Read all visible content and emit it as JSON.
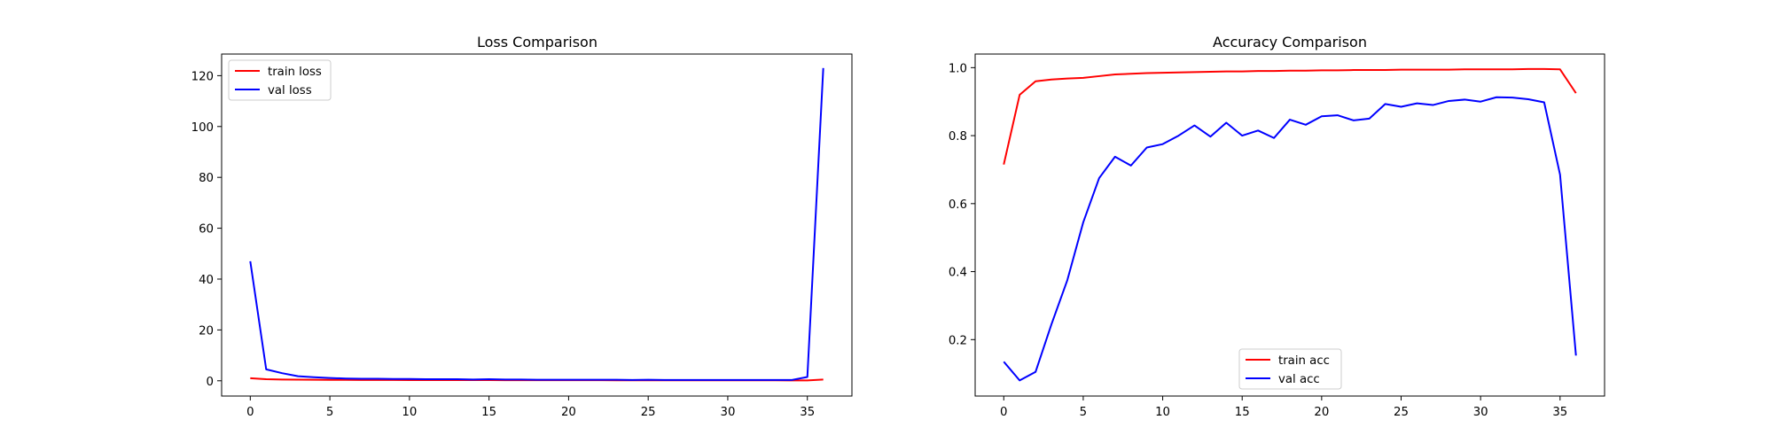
{
  "chart_data": [
    {
      "type": "line",
      "title": "Loss Comparison",
      "xlabel": "",
      "ylabel": "",
      "xlim": [
        -1.8,
        37.8
      ],
      "ylim": [
        -6.0,
        128.5
      ],
      "xticks": [
        0,
        5,
        10,
        15,
        20,
        25,
        30,
        35
      ],
      "yticks": [
        0,
        20,
        40,
        60,
        80,
        100,
        120
      ],
      "grid": false,
      "legend_position": "top-left",
      "x": [
        0,
        1,
        2,
        3,
        4,
        5,
        6,
        7,
        8,
        9,
        10,
        11,
        12,
        13,
        14,
        15,
        16,
        17,
        18,
        19,
        20,
        21,
        22,
        23,
        24,
        25,
        26,
        27,
        28,
        29,
        30,
        31,
        32,
        33,
        34,
        35,
        36
      ],
      "series": [
        {
          "name": "train loss",
          "color": "#ff0000",
          "values": [
            1.0,
            0.6,
            0.5,
            0.45,
            0.4,
            0.38,
            0.35,
            0.33,
            0.32,
            0.3,
            0.29,
            0.28,
            0.27,
            0.26,
            0.25,
            0.25,
            0.24,
            0.24,
            0.23,
            0.22,
            0.22,
            0.21,
            0.21,
            0.2,
            0.2,
            0.2,
            0.19,
            0.19,
            0.18,
            0.18,
            0.18,
            0.17,
            0.17,
            0.17,
            0.16,
            0.16,
            0.5
          ]
        },
        {
          "name": "val loss",
          "color": "#0000ff",
          "values": [
            47.0,
            4.5,
            3.0,
            1.8,
            1.4,
            1.1,
            0.9,
            0.8,
            0.8,
            0.7,
            0.7,
            0.6,
            0.6,
            0.6,
            0.5,
            0.6,
            0.5,
            0.5,
            0.4,
            0.4,
            0.4,
            0.4,
            0.4,
            0.4,
            0.3,
            0.4,
            0.3,
            0.3,
            0.3,
            0.3,
            0.3,
            0.3,
            0.3,
            0.3,
            0.3,
            1.5,
            123.0
          ]
        }
      ]
    },
    {
      "type": "line",
      "title": "Accuracy Comparison",
      "xlabel": "",
      "ylabel": "",
      "xlim": [
        -1.8,
        37.8
      ],
      "ylim": [
        0.034,
        1.04
      ],
      "xticks": [
        0,
        5,
        10,
        15,
        20,
        25,
        30,
        35
      ],
      "yticks": [
        0.2,
        0.4,
        0.6,
        0.8,
        1.0
      ],
      "ytick_labels": [
        "0.2",
        "0.4",
        "0.6",
        "0.8",
        "1.0"
      ],
      "grid": false,
      "legend_position": "bottom-center",
      "x": [
        0,
        1,
        2,
        3,
        4,
        5,
        6,
        7,
        8,
        9,
        10,
        11,
        12,
        13,
        14,
        15,
        16,
        17,
        18,
        19,
        20,
        21,
        22,
        23,
        24,
        25,
        26,
        27,
        28,
        29,
        30,
        31,
        32,
        33,
        34,
        35,
        36
      ],
      "series": [
        {
          "name": "train acc",
          "color": "#ff0000",
          "values": [
            0.715,
            0.92,
            0.96,
            0.965,
            0.968,
            0.97,
            0.975,
            0.98,
            0.982,
            0.984,
            0.985,
            0.986,
            0.987,
            0.988,
            0.989,
            0.989,
            0.99,
            0.99,
            0.991,
            0.991,
            0.992,
            0.992,
            0.993,
            0.993,
            0.993,
            0.994,
            0.994,
            0.994,
            0.994,
            0.995,
            0.995,
            0.995,
            0.995,
            0.996,
            0.996,
            0.995,
            0.925
          ]
        },
        {
          "name": "val acc",
          "color": "#0000ff",
          "values": [
            0.135,
            0.08,
            0.105,
            0.245,
            0.375,
            0.545,
            0.675,
            0.738,
            0.712,
            0.765,
            0.775,
            0.8,
            0.83,
            0.797,
            0.838,
            0.8,
            0.815,
            0.793,
            0.847,
            0.832,
            0.857,
            0.86,
            0.845,
            0.85,
            0.893,
            0.885,
            0.895,
            0.89,
            0.902,
            0.906,
            0.9,
            0.913,
            0.912,
            0.907,
            0.898,
            0.685,
            0.153
          ]
        }
      ]
    }
  ]
}
